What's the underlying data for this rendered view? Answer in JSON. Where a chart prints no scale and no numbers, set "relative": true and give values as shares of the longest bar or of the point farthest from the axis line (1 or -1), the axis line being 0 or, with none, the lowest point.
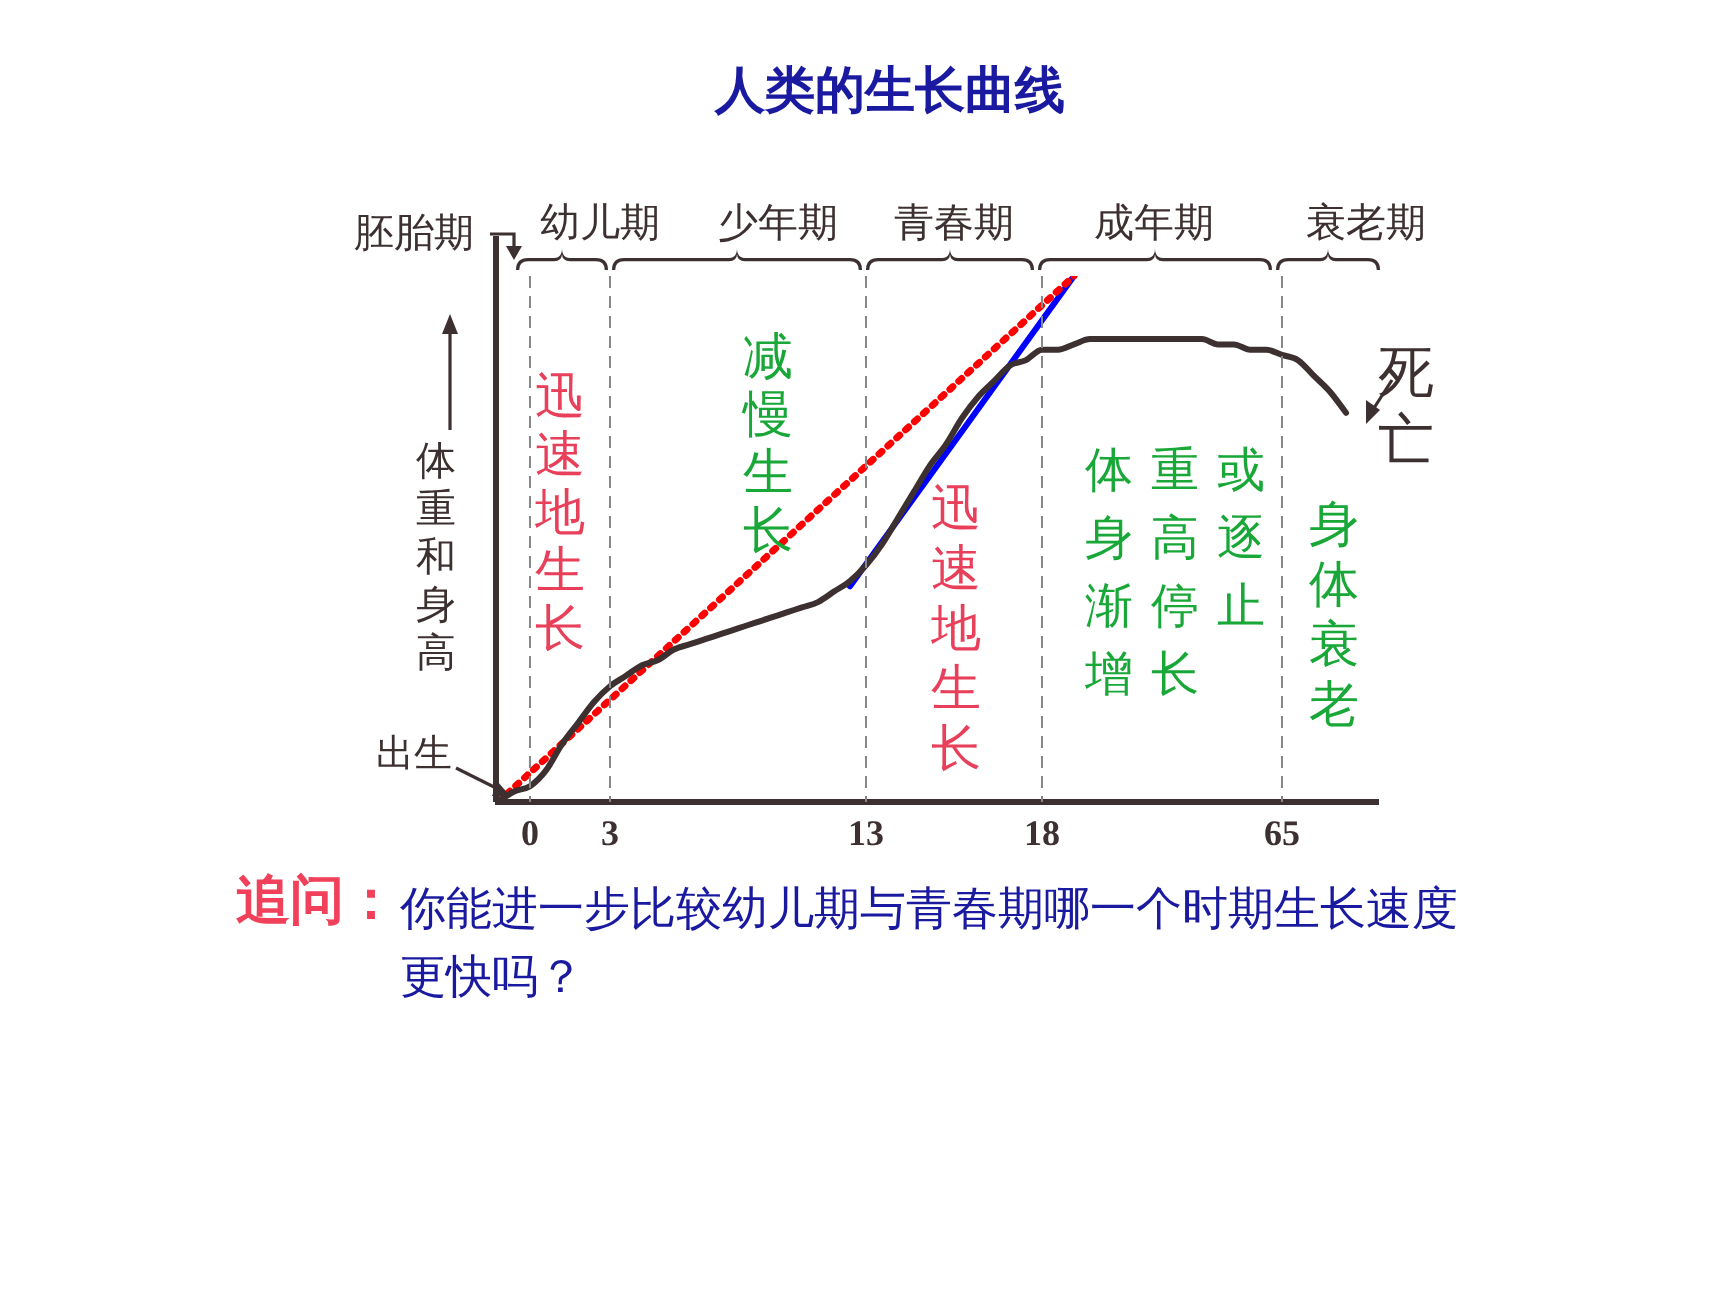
{
  "chart_data": {
    "type": "line",
    "title": "人类的生长曲线",
    "ylabel": "体重和身高",
    "relative": true,
    "legend": false,
    "grid": false,
    "marker": "none",
    "categories": [
      null,
      null,
      "0",
      null,
      null,
      null,
      null,
      "3",
      null,
      null,
      null,
      null,
      null,
      null,
      null,
      null,
      null,
      null,
      null,
      null,
      null,
      null,
      null,
      "13",
      null,
      null,
      null,
      null,
      null,
      null,
      null,
      null,
      null,
      null,
      "18",
      null,
      null,
      null,
      null,
      null,
      null,
      null,
      null,
      null,
      null,
      null,
      null,
      null,
      null,
      "65",
      null,
      null,
      null,
      null,
      null,
      null
    ],
    "series": [
      {
        "color": "#3d3030",
        "line_style": "solid",
        "values": [
          0.0,
          0.02,
          0.03,
          0.06,
          0.11,
          0.15,
          0.19,
          0.22,
          0.24,
          0.26,
          0.27,
          0.29,
          0.3,
          0.31,
          0.32,
          0.33,
          0.34,
          0.35,
          0.36,
          0.37,
          0.38,
          0.4,
          0.42,
          0.45,
          0.49,
          0.54,
          0.59,
          0.64,
          0.68,
          0.73,
          0.77,
          0.8,
          0.83,
          0.84,
          0.86,
          0.86,
          0.87,
          0.88,
          0.88,
          0.88,
          0.88,
          0.88,
          0.88,
          0.88,
          0.88,
          0.87,
          0.87,
          0.86,
          0.86,
          0.85,
          0.84,
          0.81,
          0.78,
          0.74,
          null,
          null
        ]
      },
      {
        "color": "#ff0000",
        "line_style": "dotted",
        "values": [
          0,
          null,
          null,
          null,
          null,
          null,
          null,
          null,
          null,
          null,
          null,
          null,
          null,
          null,
          null,
          null,
          null,
          null,
          null,
          null,
          null,
          null,
          null,
          null,
          null,
          null,
          null,
          null,
          null,
          null,
          null,
          null,
          null,
          null,
          null,
          null,
          1,
          null,
          null,
          null,
          null,
          null,
          null,
          null,
          null,
          null,
          null,
          null,
          null,
          null,
          null,
          null,
          null,
          null,
          null,
          null
        ]
      },
      {
        "color": "#0000ff",
        "line_style": "solid",
        "values": [
          null,
          null,
          null,
          null,
          null,
          null,
          null,
          null,
          null,
          null,
          null,
          null,
          null,
          null,
          null,
          null,
          null,
          null,
          null,
          null,
          null,
          null,
          0.41,
          null,
          null,
          null,
          null,
          null,
          null,
          null,
          null,
          null,
          null,
          null,
          null,
          null,
          1,
          null,
          null,
          null,
          null,
          null,
          null,
          null,
          null,
          null,
          null,
          null,
          null,
          null,
          null,
          null,
          null,
          null,
          null,
          null
        ]
      }
    ],
    "ref_lines": [
      {
        "axis": "x",
        "value": "0",
        "line_style": "dashed",
        "color": "#888888"
      },
      {
        "axis": "x",
        "value": "3",
        "line_style": "dashed",
        "color": "#888888"
      },
      {
        "axis": "x",
        "value": "13",
        "line_style": "dashed",
        "color": "#888888"
      },
      {
        "axis": "x",
        "value": "18",
        "line_style": "dashed",
        "color": "#888888"
      },
      {
        "axis": "x",
        "value": "65",
        "line_style": "dashed",
        "color": "#888888"
      }
    ],
    "annotations": [
      "胚胎期",
      "幼儿期",
      "少年期",
      "青春期",
      "成年期",
      "衰老期",
      "迅速地生长",
      "减慢生长",
      "迅速地生长",
      "体重或身高逐渐停止增长",
      "身体衰老",
      "出生",
      "死亡",
      "追问：",
      "你能进一步比较幼儿期与青春期哪一个时期生长速度更快吗？"
    ]
  }
}
